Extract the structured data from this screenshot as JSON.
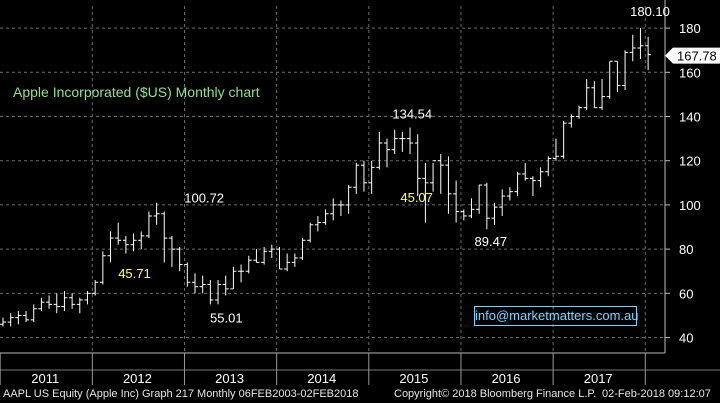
{
  "chart_data": {
    "type": "candlestick",
    "title": "Apple Incorporated ($US) Monthly chart",
    "ylim": [
      33,
      190
    ],
    "y_ticks": [
      40,
      60,
      80,
      100,
      120,
      140,
      160,
      180
    ],
    "x_ticks": [
      "2011",
      "2012",
      "2013",
      "2014",
      "2015",
      "2016",
      "2017"
    ],
    "last_price": "167.78",
    "annotations": [
      {
        "text": "100.72",
        "value": 100.72,
        "month": 21,
        "color": "#ffffff"
      },
      {
        "text": "45.71",
        "value": 45.71,
        "month": 21,
        "color": "#ffff66"
      },
      {
        "text": "55.01",
        "value": 55.01,
        "month": 28,
        "color": "#ffffff"
      },
      {
        "text": "134.54",
        "value": 134.54,
        "month": 52,
        "color": "#ffffff"
      },
      {
        "text": "45.07",
        "value": 45.07,
        "month": 52,
        "color": "#ffff66"
      },
      {
        "text": "89.47",
        "value": 89.47,
        "month": 64,
        "color": "#ffffff"
      },
      {
        "text": "180.10",
        "value": 180.1,
        "month": 84,
        "color": "#ffffff"
      }
    ],
    "series": [
      {
        "name": "AAPL",
        "ohlc": [
          [
            46,
            49,
            45,
            47
          ],
          [
            47,
            51,
            45,
            49
          ],
          [
            49,
            52,
            46,
            50
          ],
          [
            50,
            52,
            47,
            48
          ],
          [
            48,
            55,
            47,
            53
          ],
          [
            53,
            58,
            52,
            56
          ],
          [
            56,
            59,
            53,
            55
          ],
          [
            55,
            60,
            51,
            54
          ],
          [
            54,
            61,
            52,
            58
          ],
          [
            58,
            60,
            53,
            55
          ],
          [
            55,
            58,
            51,
            57
          ],
          [
            57,
            61,
            55,
            60
          ],
          [
            60,
            66,
            59,
            65
          ],
          [
            65,
            79,
            64,
            77
          ],
          [
            77,
            88,
            74,
            85
          ],
          [
            85,
            92,
            82,
            84
          ],
          [
            84,
            86,
            78,
            82
          ],
          [
            82,
            87,
            79,
            84
          ],
          [
            84,
            88,
            80,
            86
          ],
          [
            86,
            97,
            85,
            95
          ],
          [
            95,
            101,
            91,
            96
          ],
          [
            96,
            97,
            74,
            85
          ],
          [
            85,
            86,
            72,
            80
          ],
          [
            80,
            81,
            70,
            73
          ],
          [
            73,
            74,
            63,
            65
          ],
          [
            65,
            69,
            60,
            63
          ],
          [
            63,
            68,
            60,
            64
          ],
          [
            64,
            66,
            55,
            57
          ],
          [
            57,
            66,
            55,
            64
          ],
          [
            64,
            68,
            59,
            62
          ],
          [
            62,
            72,
            62,
            70
          ],
          [
            70,
            73,
            65,
            70
          ],
          [
            70,
            77,
            69,
            75
          ],
          [
            75,
            80,
            74,
            74
          ],
          [
            74,
            81,
            73,
            79
          ],
          [
            79,
            82,
            76,
            80
          ],
          [
            80,
            81,
            71,
            71
          ],
          [
            71,
            78,
            70,
            74
          ],
          [
            74,
            78,
            72,
            76
          ],
          [
            76,
            85,
            75,
            84
          ],
          [
            84,
            92,
            83,
            91
          ],
          [
            91,
            95,
            88,
            92
          ],
          [
            92,
            98,
            91,
            96
          ],
          [
            96,
            103,
            93,
            100
          ],
          [
            100,
            102,
            95,
            100
          ],
          [
            100,
            109,
            96,
            108
          ],
          [
            108,
            119,
            105,
            118
          ],
          [
            118,
            120,
            106,
            110
          ],
          [
            110,
            120,
            105,
            117
          ],
          [
            117,
            133,
            116,
            128
          ],
          [
            128,
            130,
            117,
            125
          ],
          [
            125,
            134,
            123,
            130
          ],
          [
            130,
            133,
            124,
            130
          ],
          [
            130,
            135,
            123,
            128
          ],
          [
            128,
            132,
            104,
            112
          ],
          [
            112,
            119,
            92,
            110
          ],
          [
            110,
            119,
            106,
            120
          ],
          [
            120,
            123,
            105,
            118
          ],
          [
            118,
            122,
            96,
            105
          ],
          [
            105,
            111,
            92,
            97
          ],
          [
            97,
            98,
            93,
            95
          ],
          [
            95,
            103,
            94,
            98
          ],
          [
            98,
            109,
            96,
            109
          ],
          [
            109,
            110,
            89,
            94
          ],
          [
            94,
            101,
            91,
            99
          ],
          [
            99,
            107,
            95,
            104
          ],
          [
            104,
            108,
            102,
            106
          ],
          [
            106,
            115,
            104,
            114
          ],
          [
            114,
            119,
            111,
            112
          ],
          [
            112,
            113,
            104,
            111
          ],
          [
            111,
            117,
            108,
            115
          ],
          [
            115,
            122,
            113,
            121
          ],
          [
            121,
            130,
            120,
            122
          ],
          [
            122,
            138,
            121,
            137
          ],
          [
            137,
            141,
            135,
            140
          ],
          [
            140,
            145,
            139,
            144
          ],
          [
            144,
            157,
            143,
            153
          ],
          [
            153,
            156,
            144,
            144
          ],
          [
            144,
            157,
            143,
            149
          ],
          [
            149,
            165,
            148,
            165
          ],
          [
            165,
            165,
            151,
            154
          ],
          [
            154,
            170,
            152,
            169
          ],
          [
            169,
            177,
            165,
            171
          ],
          [
            171,
            180,
            166,
            172
          ],
          [
            172,
            176,
            161,
            168
          ]
        ]
      }
    ]
  },
  "footer": {
    "left": "AAPL US Equity (Apple Inc) Graph 217  Monthly 06FEB2003-02FEB2018",
    "middle": "Copyright© 2018 Bloomberg Finance L.P.",
    "right": "02-Feb-2018 09:12:07"
  },
  "email": "info@marketmatters.com.au",
  "colors": {
    "background": "#000000",
    "bars": "#ffffff",
    "grid": "#6a6a6a",
    "title": "#8fe08f",
    "highlight": "#ffff66",
    "email": "#7fd3ff"
  }
}
